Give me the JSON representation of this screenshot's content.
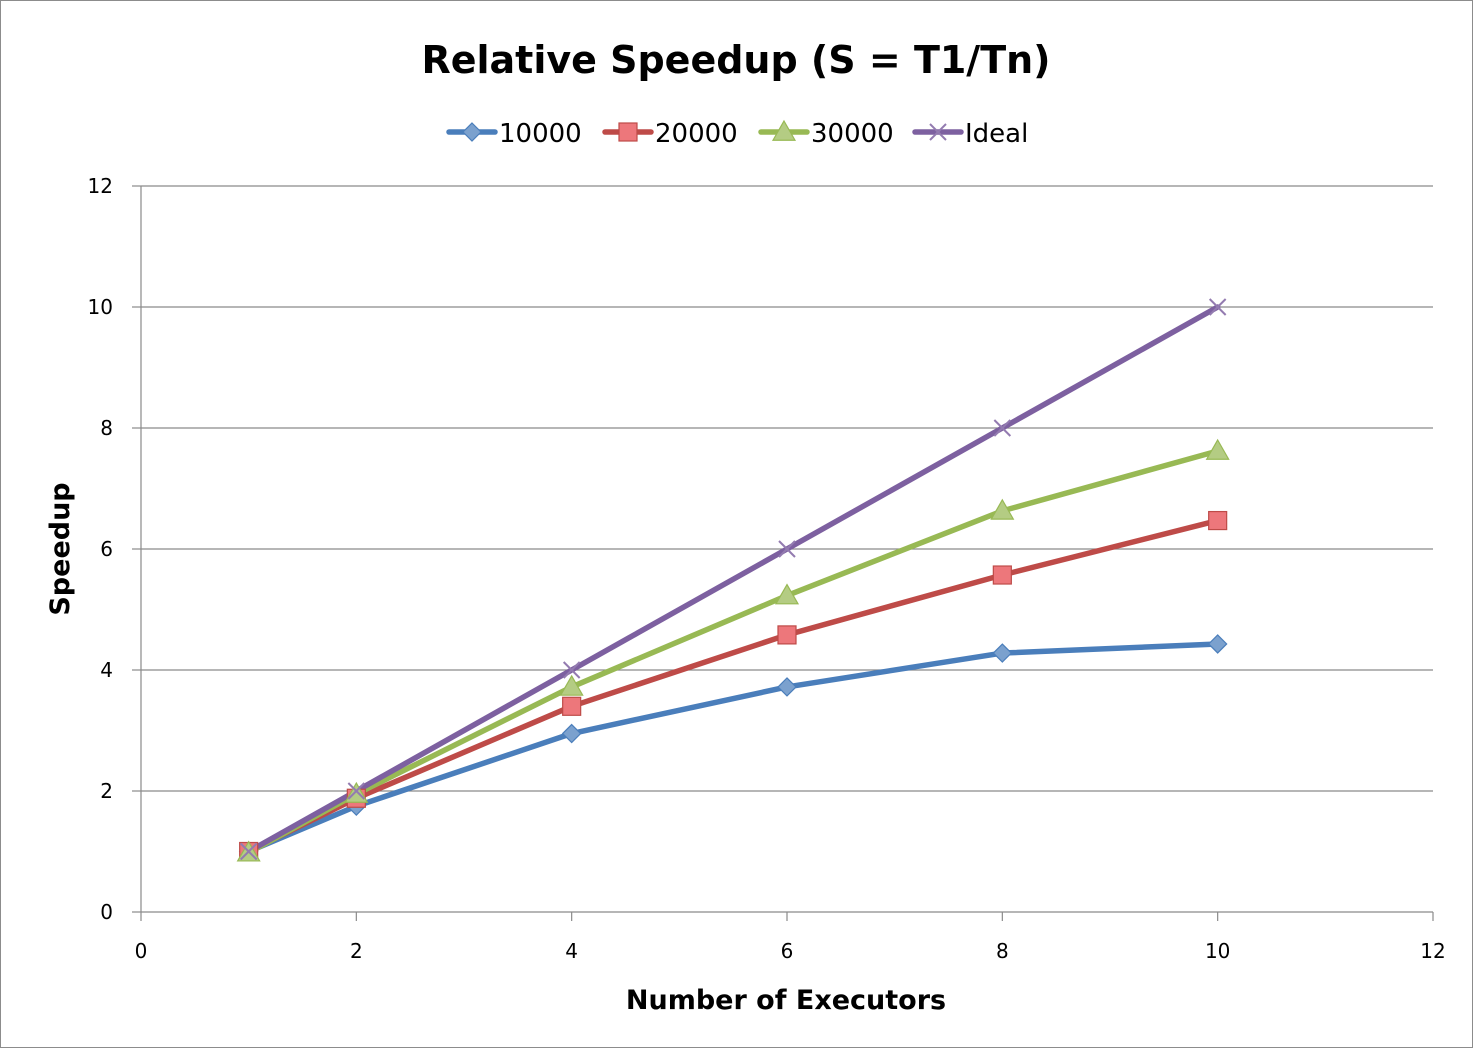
{
  "chart_data": {
    "type": "line",
    "title": "Relative Speedup (S = T1/Tn)",
    "xlabel": "Number of Executors",
    "ylabel": "Speedup",
    "xlim": [
      0,
      12
    ],
    "ylim": [
      0,
      12
    ],
    "x_ticks": [
      0,
      2,
      4,
      6,
      8,
      10,
      12
    ],
    "y_ticks": [
      0,
      2,
      4,
      6,
      8,
      10,
      12
    ],
    "grid": "horizontal",
    "legend_position": "top",
    "x": [
      1,
      2,
      4,
      6,
      8,
      10
    ],
    "series": [
      {
        "name": "10000",
        "marker": "diamond",
        "color": "#4A7EBB",
        "marker_fill": "#4F81BD",
        "values": [
          1.0,
          1.75,
          2.95,
          3.72,
          4.28,
          4.43
        ]
      },
      {
        "name": "20000",
        "marker": "square",
        "color": "#BE4B48",
        "marker_fill": "#E8555A",
        "values": [
          1.0,
          1.88,
          3.4,
          4.58,
          5.57,
          6.47
        ]
      },
      {
        "name": "30000",
        "marker": "triangle",
        "color": "#98B954",
        "marker_fill": "#9BBB59",
        "values": [
          0.98,
          1.95,
          3.72,
          5.23,
          6.63,
          7.62
        ]
      },
      {
        "name": "Ideal",
        "marker": "x",
        "color": "#7D60A0",
        "marker_fill": "#8064A2",
        "values": [
          1,
          2,
          4,
          6,
          8,
          10
        ]
      }
    ]
  }
}
